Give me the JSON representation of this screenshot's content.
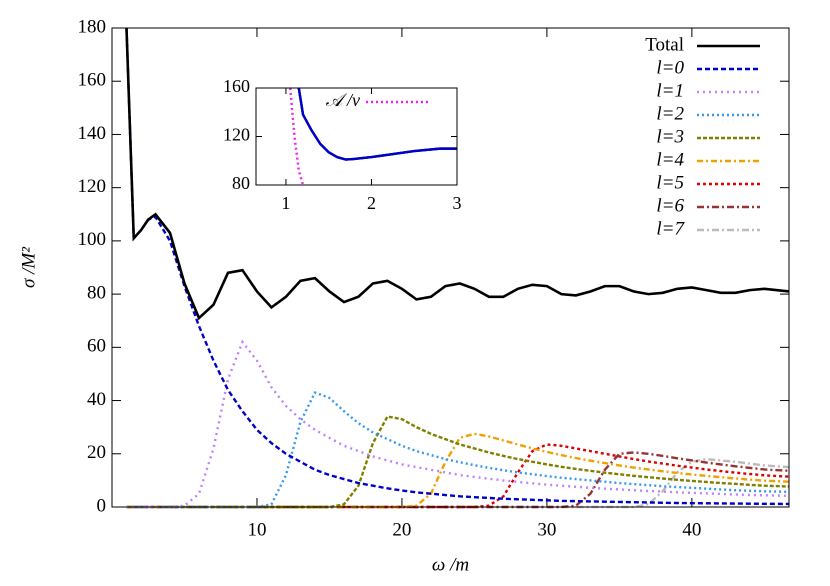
{
  "chart_data": [
    {
      "type": "line",
      "x_label": "ω /m",
      "y_label": "σ /M²",
      "xlim": [
        0,
        46.7
      ],
      "ylim": [
        0,
        180
      ],
      "xticks": [
        10,
        20,
        30,
        40
      ],
      "yticks": [
        0,
        20,
        40,
        60,
        80,
        100,
        120,
        140,
        160,
        180
      ],
      "grid": false,
      "legend": "top-right",
      "x": [
        1,
        1.5,
        2,
        2.5,
        3,
        4,
        5,
        6,
        7,
        8,
        9,
        10,
        11,
        12,
        13,
        14,
        15,
        16,
        17,
        18,
        19,
        20,
        21,
        22,
        23,
        24,
        25,
        26,
        27,
        28,
        29,
        30,
        31,
        32,
        33,
        34,
        35,
        36,
        37,
        38,
        39,
        40,
        41,
        42,
        43,
        44,
        45,
        46.7
      ],
      "series": [
        {
          "name": "Total",
          "color": "#000000",
          "values": [
            180,
            101,
            104,
            108,
            110,
            103,
            84,
            71,
            76,
            88,
            89,
            81,
            75,
            79,
            85,
            86,
            81,
            77,
            79,
            84,
            85,
            82,
            78,
            79,
            83,
            84,
            82,
            79,
            79,
            82,
            83.5,
            83,
            80,
            79.5,
            81,
            83,
            83,
            81,
            80,
            80.5,
            82,
            82.5,
            81.5,
            80.5,
            80.5,
            81.5,
            82,
            81
          ]
        },
        {
          "name": "l=0",
          "color": "#0000cc",
          "values": [
            180,
            101,
            104,
            108,
            109,
            100,
            83,
            68,
            55,
            44,
            36,
            29,
            24,
            20,
            17,
            14,
            12,
            10.5,
            9,
            8,
            7,
            6.2,
            5.5,
            5,
            4.5,
            4,
            3.7,
            3.4,
            3.1,
            2.9,
            2.7,
            2.5,
            2.3,
            2.2,
            2.1,
            2,
            1.9,
            1.8,
            1.7,
            1.6,
            1.5,
            1.45,
            1.4,
            1.35,
            1.3,
            1.25,
            1.2,
            1.15
          ]
        },
        {
          "name": "l=1",
          "color": "#c080ff",
          "values": [
            0,
            0,
            0,
            0,
            0,
            0,
            0.5,
            5,
            22,
            48,
            62,
            55,
            45,
            38,
            33,
            29,
            26,
            23,
            21,
            19,
            17.5,
            16,
            15,
            14,
            13,
            12,
            11.3,
            10.6,
            10,
            9.4,
            8.9,
            8.4,
            8,
            7.6,
            7.2,
            6.9,
            6.6,
            6.3,
            6,
            5.8,
            5.5,
            5.3,
            5.1,
            4.9,
            4.7,
            4.5,
            4.4,
            4.2
          ]
        },
        {
          "name": "l=2",
          "color": "#3399ee",
          "values": [
            0,
            0,
            0,
            0,
            0,
            0,
            0,
            0,
            0,
            0,
            0,
            0,
            1,
            12,
            32,
            43,
            41,
            36,
            31.5,
            28,
            25.5,
            23,
            21,
            19.5,
            18,
            16.8,
            15.7,
            14.7,
            13.8,
            13,
            12.3,
            11.6,
            11,
            10.5,
            10,
            9.5,
            9,
            8.6,
            8.2,
            7.8,
            7.5,
            7.2,
            6.9,
            6.6,
            6.3,
            6.1,
            5.9,
            5.7
          ]
        },
        {
          "name": "l=3",
          "color": "#808000",
          "values": [
            0,
            0,
            0,
            0,
            0,
            0,
            0,
            0,
            0,
            0,
            0,
            0,
            0,
            0,
            0,
            0,
            0,
            1,
            8,
            24,
            34,
            33,
            30,
            27.5,
            25.5,
            23.5,
            22,
            20.5,
            19.2,
            18,
            17,
            16,
            15.1,
            14.3,
            13.6,
            12.9,
            12.3,
            11.7,
            11.2,
            10.7,
            10.2,
            9.8,
            9.4,
            9,
            8.7,
            8.3,
            8,
            7.7
          ]
        },
        {
          "name": "l=4",
          "color": "#f0a000",
          "values": [
            0,
            0,
            0,
            0,
            0,
            0,
            0,
            0,
            0,
            0,
            0,
            0,
            0,
            0,
            0,
            0,
            0,
            0,
            0,
            0,
            0,
            0,
            0.5,
            5,
            17,
            26,
            27.5,
            26.5,
            25,
            23.5,
            22,
            20.7,
            19.5,
            18.4,
            17.4,
            16.5,
            15.6,
            14.8,
            14.1,
            13.4,
            12.8,
            12.2,
            11.7,
            11.2,
            10.7,
            10.3,
            9.9,
            9.5
          ]
        },
        {
          "name": "l=5",
          "color": "#dd0000",
          "values": [
            0,
            0,
            0,
            0,
            0,
            0,
            0,
            0,
            0,
            0,
            0,
            0,
            0,
            0,
            0,
            0,
            0,
            0,
            0,
            0,
            0,
            0,
            0,
            0,
            0,
            0,
            0,
            0.5,
            4,
            13,
            21,
            23.5,
            23,
            22,
            21,
            20,
            19,
            18,
            17.1,
            16.3,
            15.5,
            14.8,
            14.1,
            13.5,
            12.9,
            12.4,
            11.9,
            11.4
          ]
        },
        {
          "name": "l=6",
          "color": "#993333",
          "values": [
            0,
            0,
            0,
            0,
            0,
            0,
            0,
            0,
            0,
            0,
            0,
            0,
            0,
            0,
            0,
            0,
            0,
            0,
            0,
            0,
            0,
            0,
            0,
            0,
            0,
            0,
            0,
            0,
            0,
            0,
            0,
            0,
            0,
            0.5,
            5,
            14,
            20,
            20.5,
            20,
            19.2,
            18.3,
            17.5,
            16.7,
            16,
            15.3,
            14.7,
            14.1,
            13.6
          ]
        },
        {
          "name": "l=7",
          "color": "#bbbbbb",
          "values": [
            0,
            0,
            0,
            0,
            0,
            0,
            0,
            0,
            0,
            0,
            0,
            0,
            0,
            0,
            0,
            0,
            0,
            0,
            0,
            0,
            0,
            0,
            0,
            0,
            0,
            0,
            0,
            0,
            0,
            0,
            0,
            0,
            0,
            0,
            0,
            0,
            0,
            0,
            1,
            6,
            13,
            17,
            18,
            17.5,
            17,
            16.3,
            15.6,
            15
          ]
        }
      ]
    },
    {
      "type": "line",
      "xlim": [
        0.65,
        3
      ],
      "ylim": [
        80,
        160
      ],
      "xticks": [
        1,
        2,
        3
      ],
      "yticks": [
        80,
        120,
        160
      ],
      "grid": false,
      "legend": "top-right",
      "x": [
        1.15,
        1.2,
        1.3,
        1.4,
        1.5,
        1.6,
        1.7,
        1.8,
        2,
        2.2,
        2.5,
        2.8,
        3
      ],
      "series": [
        {
          "color": "#000000",
          "values": [
            160,
            138,
            125,
            114,
            107,
            103,
            101,
            101.5,
            103,
            105,
            108,
            110,
            110
          ]
        },
        {
          "color": "#0000cc",
          "values": [
            160,
            138,
            125,
            114,
            107,
            103,
            101,
            101.5,
            103,
            105,
            108,
            110,
            110
          ]
        },
        {
          "name": "𝒜 /v",
          "color": "#ee22ee",
          "x": [
            1.05,
            1.1,
            1.15,
            1.2
          ],
          "values": [
            160,
            120,
            92,
            80
          ]
        }
      ]
    }
  ]
}
